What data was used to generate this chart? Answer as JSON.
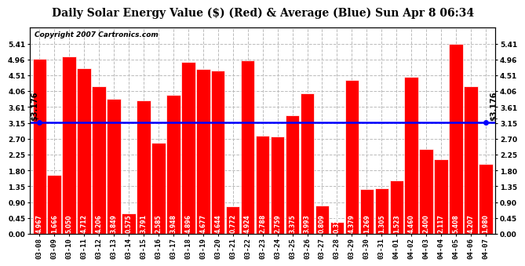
{
  "title": "Daily Solar Energy Value ($) (Red) & Average (Blue) Sun Apr 8 06:34",
  "copyright": "Copyright 2007 Cartronics.com",
  "average": 3.176,
  "bar_color": "#FF0000",
  "avg_line_color": "#0000FF",
  "background_color": "#FFFFFF",
  "plot_bg_color": "#FFFFFF",
  "categories": [
    "03-08",
    "03-09",
    "03-10",
    "03-11",
    "03-12",
    "03-13",
    "03-14",
    "03-15",
    "03-16",
    "03-17",
    "03-18",
    "03-19",
    "03-20",
    "03-21",
    "03-22",
    "03-23",
    "03-24",
    "03-25",
    "03-26",
    "03-27",
    "03-28",
    "03-29",
    "03-30",
    "03-31",
    "04-01",
    "04-02",
    "04-03",
    "04-04",
    "04-05",
    "04-06",
    "04-07"
  ],
  "values": [
    4.967,
    1.666,
    5.05,
    4.712,
    4.206,
    3.849,
    0.575,
    3.791,
    2.585,
    3.948,
    4.896,
    4.677,
    4.644,
    0.772,
    4.924,
    2.788,
    2.759,
    3.375,
    3.993,
    0.809,
    0.323,
    4.379,
    1.269,
    1.305,
    1.523,
    4.46,
    2.4,
    2.117,
    5.408,
    4.207,
    1.98
  ],
  "ylim": [
    0,
    5.86
  ],
  "yticks": [
    0.0,
    0.45,
    0.9,
    1.35,
    1.8,
    2.25,
    2.7,
    3.15,
    3.61,
    4.06,
    4.51,
    4.96,
    5.41
  ],
  "grid_color": "#BBBBBB",
  "avg_label": "$3.176",
  "title_fontsize": 10,
  "tick_fontsize": 6.5,
  "val_fontsize": 5.5,
  "copyright_fontsize": 6.5
}
